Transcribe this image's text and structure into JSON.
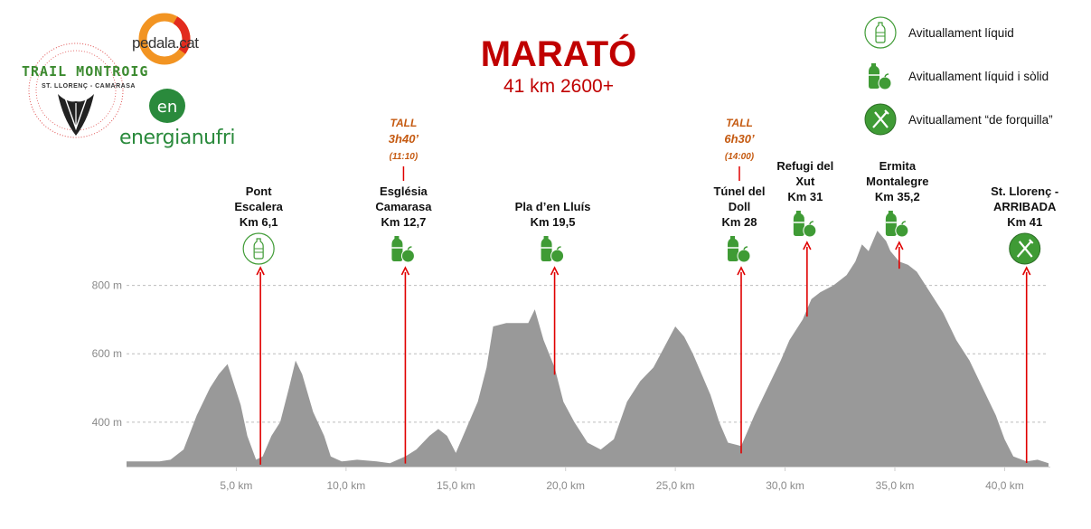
{
  "header": {
    "title": "MARATÓ",
    "subtitle": "41 km 2600+"
  },
  "logos": {
    "trail": "TRAIL MONTROIG",
    "trail_sub": "ST. LLORENÇ - CAMARASA",
    "pedala": "pedala.cat",
    "energia": "energianufri"
  },
  "legend": [
    {
      "icon": "water-bottle-icon",
      "label": "Avituallament líquid"
    },
    {
      "icon": "bottle-apple-icon",
      "label": "Avituallament líquid i sòlid"
    },
    {
      "icon": "fork-knife-icon",
      "label": "Avituallament “de forquilla”"
    }
  ],
  "colors": {
    "title": "#c00000",
    "profile": "#999999",
    "marker_line": "#e00000",
    "cutoff": "#c55a11",
    "icon_green": "#3f9b35"
  },
  "chart_data": {
    "type": "area",
    "xlabel": "",
    "ylabel": "",
    "xlim": [
      0,
      42
    ],
    "ylim": [
      270,
      1000
    ],
    "x_ticks": [
      5,
      10,
      15,
      20,
      25,
      30,
      35,
      40
    ],
    "x_tick_labels": [
      "5,0 km",
      "10,0 km",
      "15,0 km",
      "20,0 km",
      "25,0 km",
      "30,0 km",
      "35,0 km",
      "40,0 km"
    ],
    "y_ticks": [
      400,
      600,
      800
    ],
    "y_tick_labels": [
      "400 m",
      "600 m",
      "800 m"
    ],
    "grid": true,
    "series": [
      {
        "x": [
          0,
          1.5,
          2.0,
          2.6,
          3.2,
          3.8,
          4.2,
          4.6,
          4.8,
          5.2,
          5.5,
          5.9,
          6.2,
          6.6,
          7.0,
          7.4,
          7.7,
          8.0,
          8.5,
          9.0,
          9.3,
          9.8,
          10.5,
          11.4,
          12.0,
          12.7,
          13.2,
          13.8,
          14.2,
          14.6,
          15.0,
          15.6,
          16.0,
          16.4,
          16.7,
          17.3,
          17.8,
          18.3,
          18.6,
          19.0,
          19.5,
          19.9,
          20.4,
          21.0,
          21.6,
          22.2,
          22.8,
          23.4,
          24.0,
          24.5,
          25.0,
          25.4,
          25.8,
          26.2,
          26.6,
          27.0,
          27.4,
          28.0,
          28.6,
          29.2,
          29.8,
          30.2,
          30.8,
          31.2,
          31.6,
          32.2,
          32.8,
          33.2,
          33.5,
          33.8,
          34.2,
          34.6,
          34.8,
          35.2,
          35.6,
          36.0,
          36.6,
          37.2,
          37.8,
          38.4,
          39.0,
          39.6,
          40.0,
          40.4,
          41.0,
          41.5,
          42.0
        ],
        "y": [
          285,
          285,
          290,
          320,
          420,
          500,
          540,
          570,
          530,
          450,
          360,
          290,
          300,
          360,
          400,
          500,
          580,
          540,
          430,
          360,
          300,
          285,
          290,
          285,
          280,
          300,
          320,
          360,
          380,
          360,
          310,
          400,
          460,
          560,
          680,
          690,
          690,
          690,
          730,
          640,
          560,
          460,
          400,
          340,
          320,
          350,
          460,
          520,
          560,
          620,
          680,
          650,
          600,
          540,
          480,
          400,
          340,
          330,
          420,
          500,
          580,
          640,
          700,
          760,
          780,
          800,
          830,
          870,
          920,
          900,
          960,
          930,
          900,
          870,
          860,
          840,
          780,
          720,
          640,
          580,
          500,
          420,
          350,
          300,
          285,
          290,
          280
        ]
      }
    ],
    "markers": [
      {
        "name": "Pont Escalera",
        "label": [
          "Pont",
          "Escalera",
          "Km 6,1"
        ],
        "km": 6.1,
        "icon": "water-bottle-icon",
        "cutoff": null
      },
      {
        "name": "Església Camarasa",
        "label": [
          "Església",
          "Camarasa",
          "Km 12,7"
        ],
        "km": 12.7,
        "icon": "bottle-apple-icon",
        "cutoff": [
          "TALL",
          "3h40’",
          "(11:10)"
        ]
      },
      {
        "name": "Pla d’en Lluís",
        "label": [
          "Pla d’en Lluís",
          "Km 19,5"
        ],
        "km": 19.5,
        "icon": "bottle-apple-icon",
        "cutoff": null
      },
      {
        "name": "Túnel del Doll",
        "label": [
          "Túnel del",
          "Doll",
          "Km 28"
        ],
        "km": 28,
        "icon": "bottle-apple-icon",
        "cutoff": [
          "TALL",
          "6h30’",
          "(14:00)"
        ]
      },
      {
        "name": "Refugi del Xut",
        "label": [
          "Refugi del",
          "Xut",
          "Km 31"
        ],
        "km": 31,
        "icon": "bottle-apple-icon",
        "cutoff": null
      },
      {
        "name": "Ermita Montalegre",
        "label": [
          "Ermita",
          "Montalegre",
          "Km 35,2"
        ],
        "km": 35.2,
        "icon": "bottle-apple-icon",
        "cutoff": null
      },
      {
        "name": "St. Llorenç - ARRIBADA",
        "label": [
          "St. Llorenç -",
          "ARRIBADA",
          "Km 41"
        ],
        "km": 41,
        "icon": "fork-knife-icon",
        "cutoff": null
      }
    ]
  }
}
